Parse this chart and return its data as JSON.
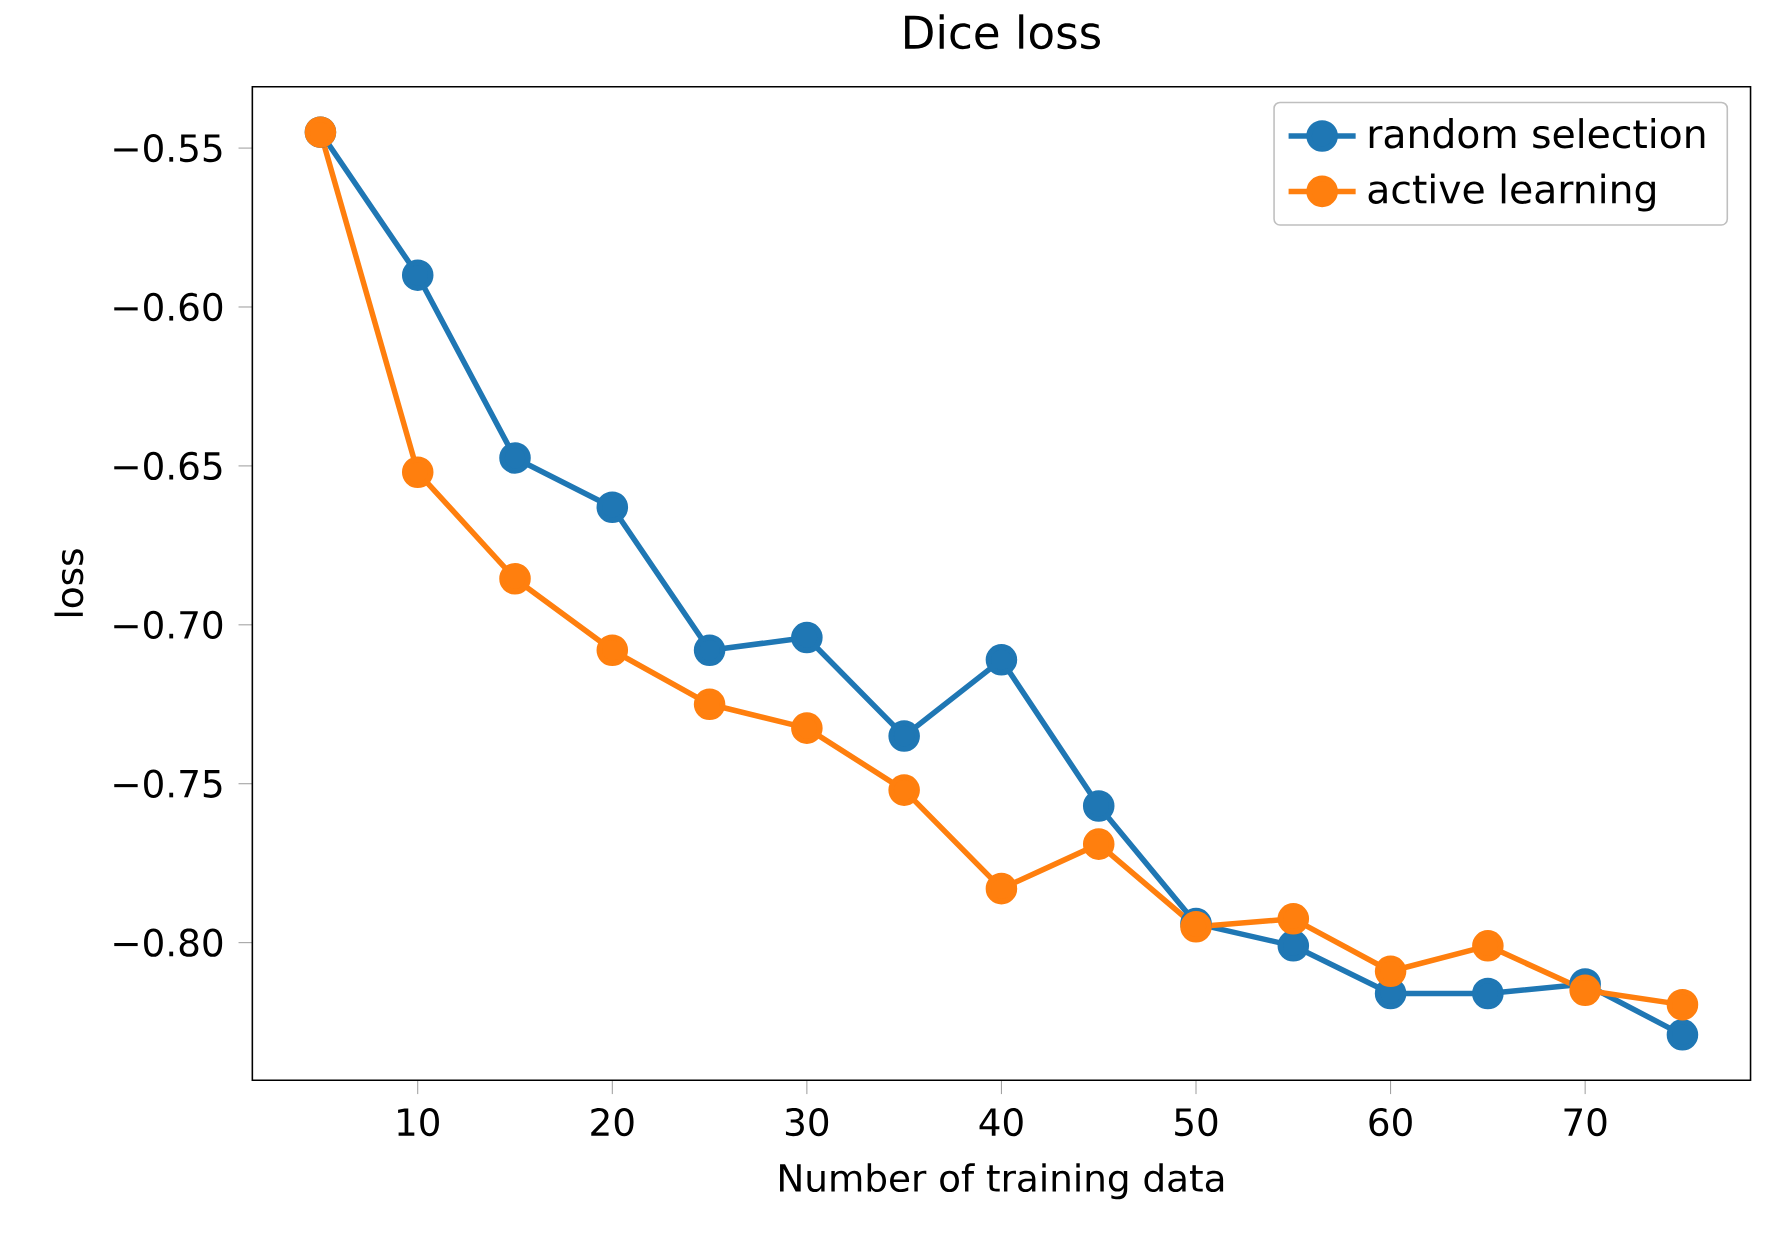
{
  "chart_data": {
    "type": "line",
    "title": "Dice loss",
    "xlabel": "Number of training data",
    "ylabel": "loss",
    "x": [
      5,
      10,
      15,
      20,
      25,
      30,
      35,
      40,
      45,
      50,
      55,
      60,
      65,
      70,
      75
    ],
    "series": [
      {
        "name": "random selection",
        "color": "#1f77b4",
        "values": [
          -0.545,
          -0.59,
          -0.6475,
          -0.663,
          -0.708,
          -0.704,
          -0.735,
          -0.711,
          -0.757,
          -0.794,
          -0.801,
          -0.816,
          -0.816,
          -0.813,
          -0.829
        ]
      },
      {
        "name": "active learning",
        "color": "#ff7f0e",
        "values": [
          -0.545,
          -0.652,
          -0.6855,
          -0.708,
          -0.725,
          -0.7325,
          -0.752,
          -0.783,
          -0.769,
          -0.795,
          -0.7925,
          -0.809,
          -0.801,
          -0.815,
          -0.8195
        ]
      }
    ],
    "xlim": [
      1.5,
      78.5
    ],
    "ylim": [
      -0.8433,
      -0.5307
    ],
    "xticks": [
      10,
      20,
      30,
      40,
      50,
      60,
      70
    ],
    "yticks": [
      {
        "value": -0.55,
        "label": "−0.55"
      },
      {
        "value": -0.6,
        "label": "−0.60"
      },
      {
        "value": -0.65,
        "label": "−0.65"
      },
      {
        "value": -0.7,
        "label": "−0.70"
      },
      {
        "value": -0.75,
        "label": "−0.75"
      },
      {
        "value": -0.8,
        "label": "−0.80"
      }
    ],
    "legend": "top right",
    "marker": "circle",
    "line_style": "solid",
    "grid": false
  }
}
